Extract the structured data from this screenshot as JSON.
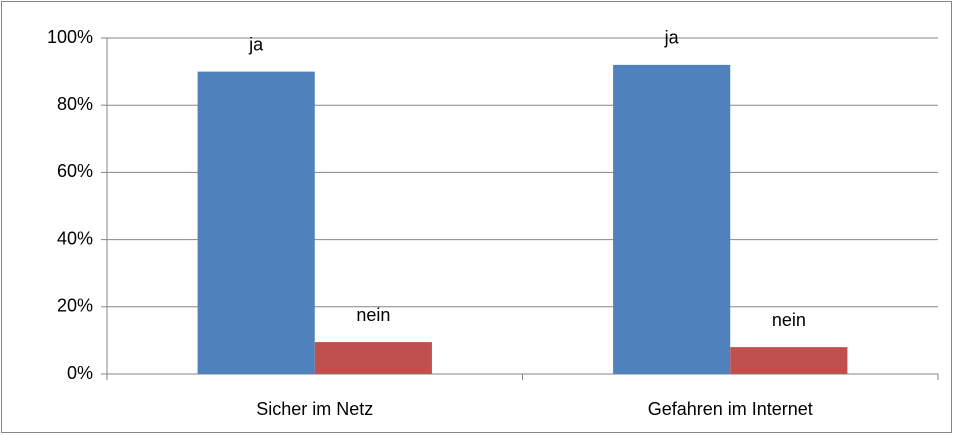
{
  "chart_data": {
    "type": "bar",
    "categories": [
      "Sicher im Netz",
      "Gefahren im Internet"
    ],
    "series": [
      {
        "name": "ja",
        "color": "#4f81bd",
        "values": [
          90,
          92
        ]
      },
      {
        "name": "nein",
        "color": "#c0504d",
        "values": [
          9.5,
          8
        ]
      }
    ],
    "ylim": [
      0,
      100
    ],
    "yticks": [
      {
        "value": 0,
        "label": "0%"
      },
      {
        "value": 20,
        "label": "20%"
      },
      {
        "value": 40,
        "label": "40%"
      },
      {
        "value": 60,
        "label": "60%"
      },
      {
        "value": 80,
        "label": "80%"
      },
      {
        "value": 100,
        "label": "100%"
      }
    ],
    "grid": true
  }
}
